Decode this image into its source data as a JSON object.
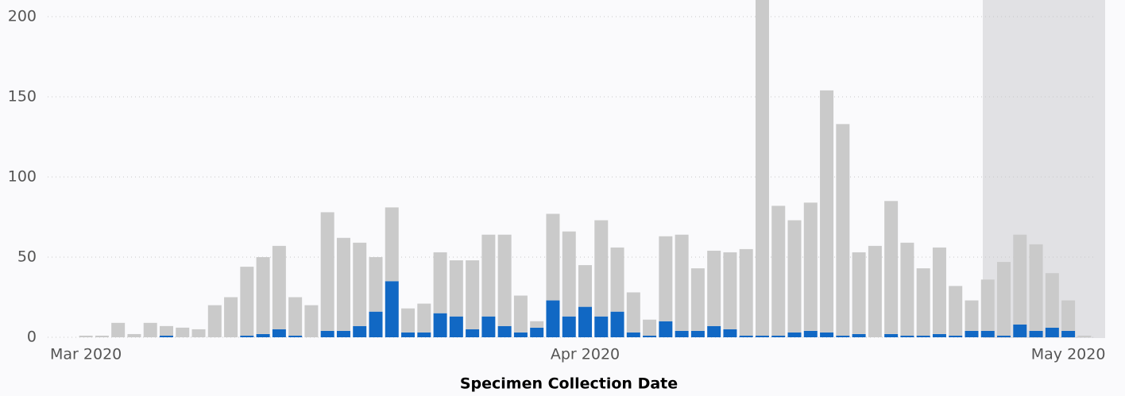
{
  "chart_data": {
    "type": "stacked_bar",
    "x_label": "Specimen Collection Date",
    "categories": [
      "Mar 2020",
      null,
      null,
      null,
      null,
      null,
      null,
      null,
      null,
      null,
      null,
      null,
      null,
      null,
      null,
      null,
      null,
      null,
      null,
      null,
      null,
      null,
      null,
      null,
      null,
      null,
      null,
      null,
      null,
      null,
      null,
      "Apr 2020",
      null,
      null,
      null,
      null,
      null,
      null,
      null,
      null,
      null,
      null,
      null,
      null,
      null,
      null,
      null,
      null,
      null,
      null,
      null,
      null,
      null,
      null,
      null,
      null,
      null,
      null,
      null,
      null,
      null,
      "May 2020",
      null
    ],
    "series": [
      {
        "color": "#1168c4",
        "values": [
          0,
          0,
          0,
          0,
          0,
          1,
          0,
          0,
          0,
          0,
          1,
          2,
          5,
          1,
          0,
          4,
          4,
          7,
          16,
          35,
          3,
          3,
          15,
          13,
          5,
          13,
          7,
          3,
          6,
          23,
          13,
          19,
          13,
          16,
          3,
          1,
          10,
          4,
          4,
          7,
          5,
          1,
          1,
          1,
          3,
          4,
          3,
          1,
          2,
          0,
          2,
          1,
          1,
          2,
          1,
          4,
          4,
          1,
          8,
          4,
          6,
          4,
          0
        ]
      },
      {
        "color": "#cacaca",
        "values": [
          1,
          1,
          9,
          2,
          9,
          6,
          6,
          5,
          20,
          25,
          43,
          48,
          52,
          24,
          20,
          74,
          58,
          52,
          34,
          46,
          15,
          18,
          38,
          35,
          43,
          51,
          57,
          23,
          4,
          54,
          53,
          26,
          60,
          40,
          25,
          10,
          53,
          60,
          39,
          47,
          48,
          54,
          229,
          81,
          70,
          80,
          151,
          132,
          51,
          57,
          83,
          58,
          42,
          54,
          31,
          19,
          32,
          46,
          56,
          54,
          34,
          19,
          1
        ]
      }
    ],
    "ylim": [
      0,
      210
    ],
    "yticks": [
      0,
      50,
      100,
      150,
      200
    ],
    "grid": true
  }
}
